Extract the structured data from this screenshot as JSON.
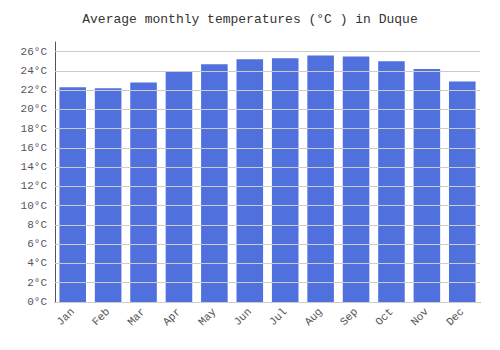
{
  "chart_data": {
    "type": "bar",
    "title": "Average monthly temperatures (°C ) in Duque",
    "categories": [
      "Jan",
      "Feb",
      "Mar",
      "Apr",
      "May",
      "Jun",
      "Jul",
      "Aug",
      "Sep",
      "Oct",
      "Nov",
      "Dec"
    ],
    "values": [
      22.3,
      22.2,
      22.8,
      23.9,
      24.7,
      25.2,
      25.3,
      25.6,
      25.5,
      25.0,
      24.2,
      22.9
    ],
    "ylim": [
      0,
      27
    ],
    "yticks": [
      {
        "value": 0,
        "label": "0°C"
      },
      {
        "value": 2,
        "label": "2°C"
      },
      {
        "value": 4,
        "label": "4°C"
      },
      {
        "value": 6,
        "label": "6°C"
      },
      {
        "value": 8,
        "label": "8°C"
      },
      {
        "value": 10,
        "label": "10°C"
      },
      {
        "value": 12,
        "label": "12°C"
      },
      {
        "value": 14,
        "label": "14°C"
      },
      {
        "value": 16,
        "label": "16°C"
      },
      {
        "value": 18,
        "label": "18°C"
      },
      {
        "value": 20,
        "label": "20°C"
      },
      {
        "value": 22,
        "label": "22°C"
      },
      {
        "value": 24,
        "label": "24°C"
      },
      {
        "value": 26,
        "label": "26°C"
      }
    ],
    "grid": true
  }
}
